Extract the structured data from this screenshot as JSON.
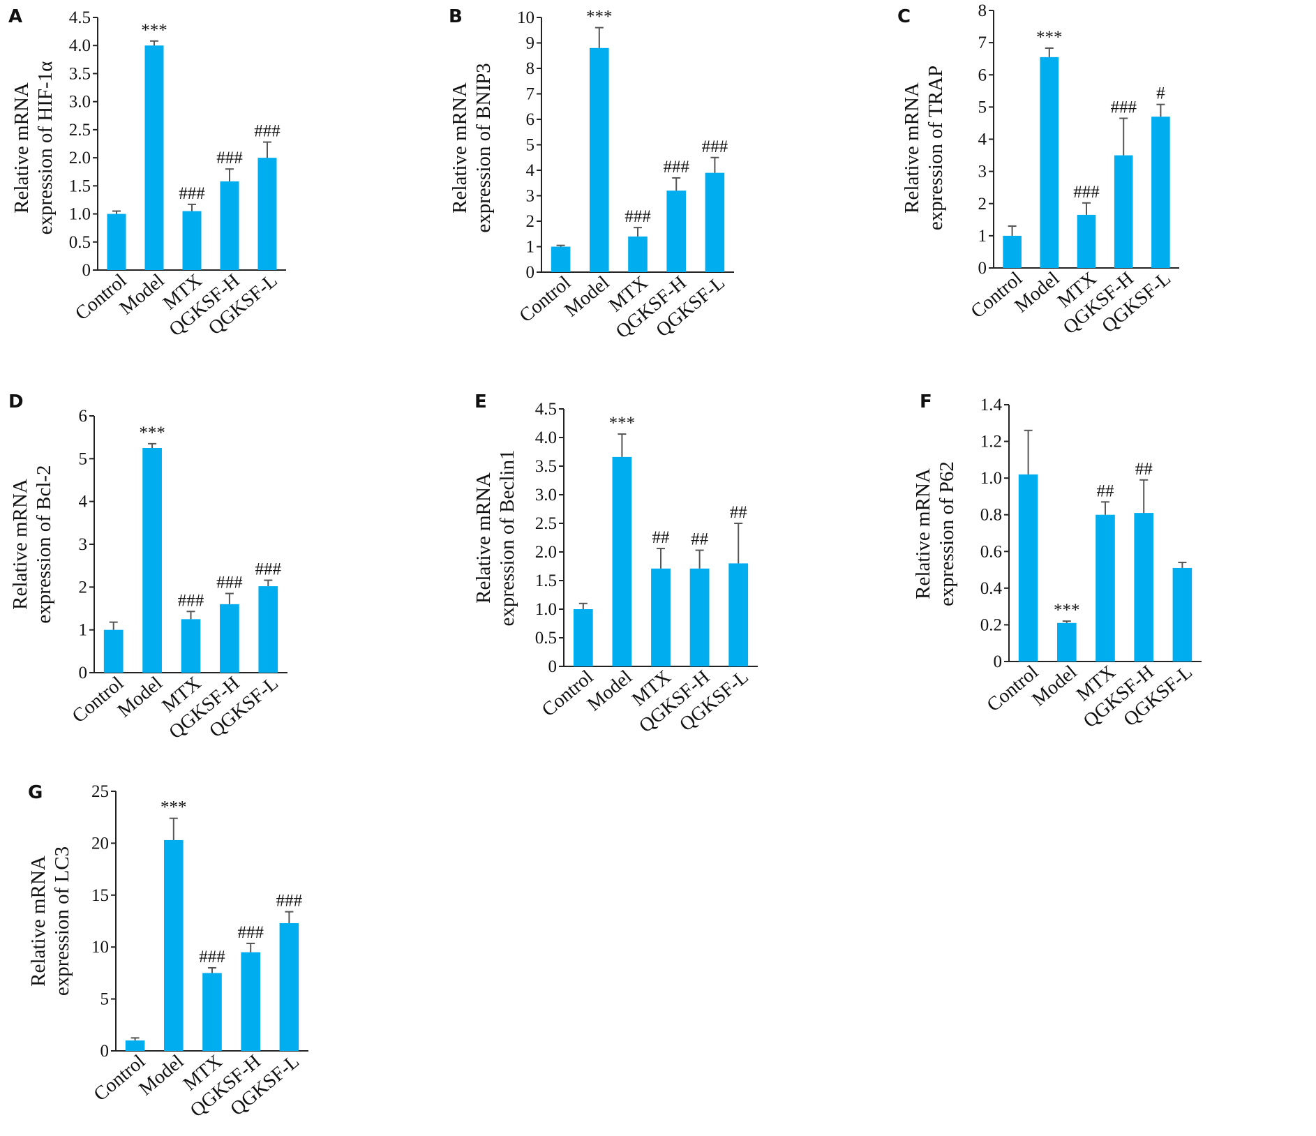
{
  "chart_data": [
    {
      "panel": "A",
      "type": "bar",
      "categories": [
        "Control",
        "Model",
        "MTX",
        "QGKSF-H",
        "QGKSF-L"
      ],
      "values": [
        1.0,
        4.0,
        1.05,
        1.58,
        2.0
      ],
      "errors": [
        0.05,
        0.08,
        0.12,
        0.22,
        0.28
      ],
      "annotations": [
        "",
        "***",
        "###",
        "###",
        "###"
      ],
      "ylabel": [
        "Relative mRNA",
        "expression of HIF-1α"
      ],
      "ylim": [
        0,
        4.5
      ],
      "yticks": [
        "0",
        "0.5",
        "1.0",
        "1.5",
        "2.0",
        "2.5",
        "3.0",
        "3.5",
        "4.0",
        "4.5"
      ]
    },
    {
      "panel": "B",
      "type": "bar",
      "categories": [
        "Control",
        "Model",
        "MTX",
        "QGKSF-H",
        "QGKSF-L"
      ],
      "values": [
        1.0,
        8.8,
        1.4,
        3.2,
        3.9
      ],
      "errors": [
        0.05,
        0.8,
        0.35,
        0.5,
        0.6
      ],
      "annotations": [
        "",
        "***",
        "###",
        "###",
        "###"
      ],
      "ylabel": [
        "Relative mRNA",
        "expression of BNIP3"
      ],
      "ylim": [
        0,
        10
      ],
      "yticks": [
        "0",
        "1",
        "2",
        "3",
        "4",
        "5",
        "6",
        "7",
        "8",
        "9",
        "10"
      ]
    },
    {
      "panel": "C",
      "type": "bar",
      "categories": [
        "Control",
        "Model",
        "MTX",
        "QGKSF-H",
        "QGKSF-L"
      ],
      "values": [
        1.0,
        6.55,
        1.65,
        3.5,
        4.7
      ],
      "errors": [
        0.3,
        0.28,
        0.37,
        1.15,
        0.38
      ],
      "annotations": [
        "",
        "***",
        "###",
        "###",
        "#"
      ],
      "ylabel": [
        "Relative mRNA",
        "expression of TRAP"
      ],
      "ylim": [
        0,
        8
      ],
      "yticks": [
        "0",
        "1",
        "2",
        "3",
        "4",
        "5",
        "6",
        "7",
        "8"
      ]
    },
    {
      "panel": "D",
      "type": "bar",
      "categories": [
        "Control",
        "Model",
        "MTX",
        "QGKSF-H",
        "QGKSF-L"
      ],
      "values": [
        1.0,
        5.25,
        1.25,
        1.6,
        2.02
      ],
      "errors": [
        0.18,
        0.1,
        0.18,
        0.25,
        0.14
      ],
      "annotations": [
        "",
        "***",
        "###",
        "###",
        "###"
      ],
      "ylabel": [
        "Relative mRNA",
        "expression of Bcl-2"
      ],
      "ylim": [
        0,
        6
      ],
      "yticks": [
        "0",
        "1",
        "2",
        "3",
        "4",
        "5",
        "6"
      ]
    },
    {
      "panel": "E",
      "type": "bar",
      "categories": [
        "Control",
        "Model",
        "MTX",
        "QGKSF-H",
        "QGKSF-L"
      ],
      "values": [
        1.0,
        3.66,
        1.71,
        1.71,
        1.8
      ],
      "errors": [
        0.1,
        0.4,
        0.35,
        0.32,
        0.7
      ],
      "annotations": [
        "",
        "***",
        "##",
        "##",
        "##"
      ],
      "ylabel": [
        "Relative mRNA",
        "expression of Beclin1"
      ],
      "ylim": [
        0,
        4.5
      ],
      "yticks": [
        "0",
        "0.5",
        "1.0",
        "1.5",
        "2.0",
        "2.5",
        "3.0",
        "3.5",
        "4.0",
        "4.5"
      ]
    },
    {
      "panel": "F",
      "type": "bar",
      "categories": [
        "Control",
        "Model",
        "MTX",
        "QGKSF-H",
        "QGKSF-L"
      ],
      "values": [
        1.02,
        0.21,
        0.8,
        0.81,
        0.51
      ],
      "errors": [
        0.24,
        0.01,
        0.07,
        0.18,
        0.03
      ],
      "annotations": [
        "",
        "***",
        "##",
        "##",
        ""
      ],
      "ylabel": [
        "Relative mRNA",
        "expression of P62"
      ],
      "ylim": [
        0,
        1.4
      ],
      "yticks": [
        "0",
        "0.2",
        "0.4",
        "0.6",
        "0.8",
        "1.0",
        "1.2",
        "1.4"
      ]
    },
    {
      "panel": "G",
      "type": "bar",
      "categories": [
        "Control",
        "Model",
        "MTX",
        "QGKSF-H",
        "QGKSF-L"
      ],
      "values": [
        1.0,
        20.3,
        7.5,
        9.5,
        12.3
      ],
      "errors": [
        0.25,
        2.1,
        0.5,
        0.85,
        1.1
      ],
      "annotations": [
        "",
        "***",
        "###",
        "###",
        "###"
      ],
      "ylabel": [
        "Relative mRNA",
        "expression of LC3"
      ],
      "ylim": [
        0,
        25
      ],
      "yticks": [
        "0",
        "5",
        "10",
        "15",
        "20",
        "25"
      ]
    }
  ],
  "colors": {
    "bar": "#00ADEF",
    "error_bar": "#555555",
    "axis": "#222222"
  }
}
